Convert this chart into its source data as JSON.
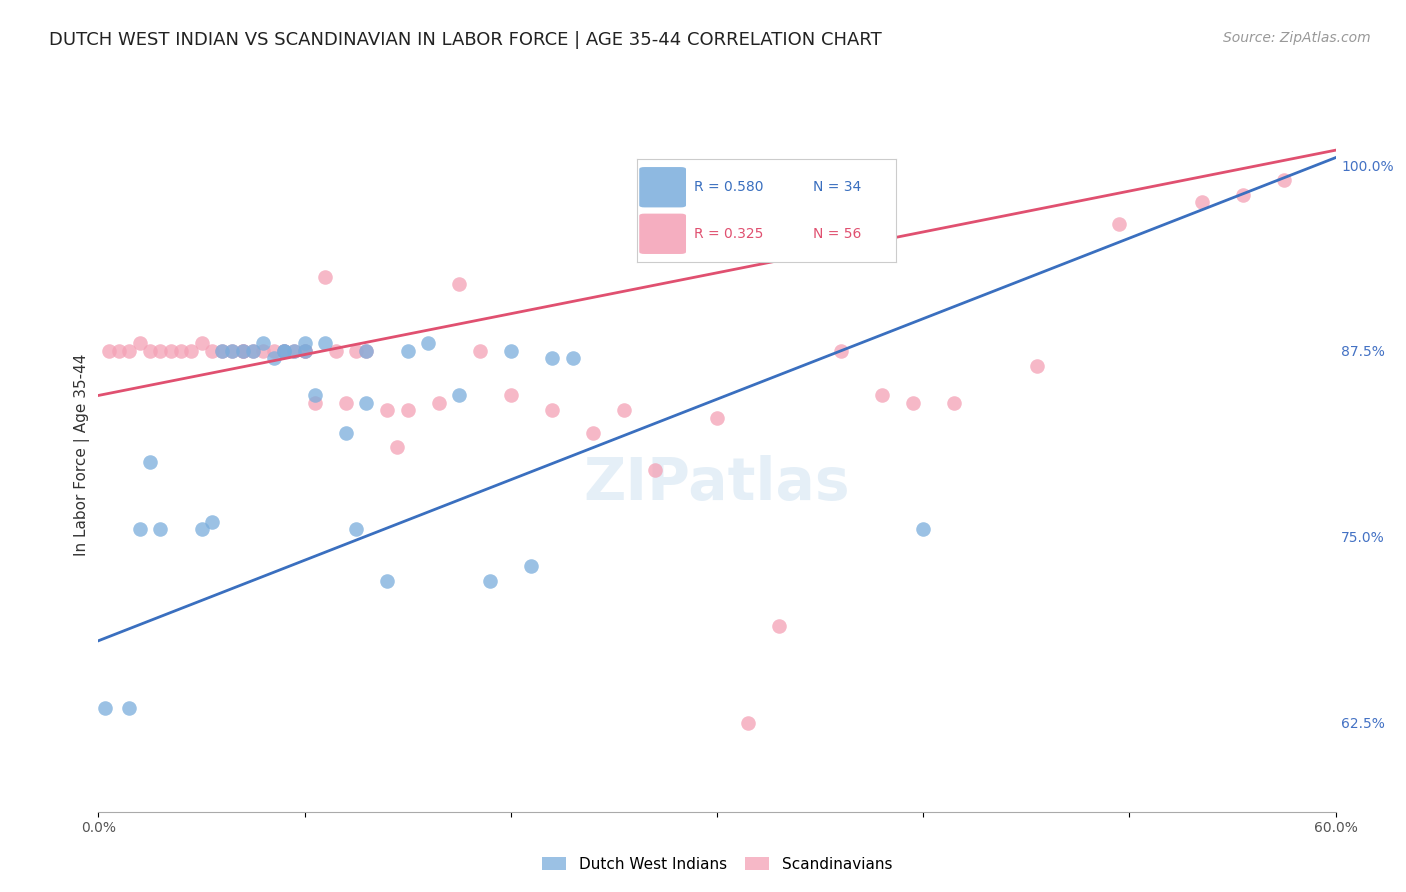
{
  "title": "DUTCH WEST INDIAN VS SCANDINAVIAN IN LABOR FORCE | AGE 35-44 CORRELATION CHART",
  "source": "Source: ZipAtlas.com",
  "ylabel": "In Labor Force | Age 35-44",
  "xmin": 0.0,
  "xmax": 0.6,
  "ymin": 0.565,
  "ymax": 1.045,
  "x_ticks": [
    0.0,
    0.1,
    0.2,
    0.3,
    0.4,
    0.5,
    0.6
  ],
  "x_tick_labels": [
    "0.0%",
    "",
    "",
    "",
    "",
    "",
    "60.0%"
  ],
  "y_ticks_right": [
    0.625,
    0.75,
    0.875,
    1.0
  ],
  "y_tick_labels_right": [
    "62.5%",
    "75.0%",
    "87.5%",
    "100.0%"
  ],
  "blue_color": "#7aaddc",
  "pink_color": "#f4a0b5",
  "blue_line_color": "#3a6fbf",
  "pink_line_color": "#e05070",
  "watermark": "ZIPatlas",
  "blue_scatter_x": [
    0.003,
    0.015,
    0.02,
    0.025,
    0.03,
    0.05,
    0.055,
    0.06,
    0.065,
    0.07,
    0.075,
    0.08,
    0.085,
    0.09,
    0.09,
    0.095,
    0.1,
    0.1,
    0.105,
    0.11,
    0.12,
    0.125,
    0.13,
    0.13,
    0.14,
    0.15,
    0.16,
    0.175,
    0.19,
    0.2,
    0.21,
    0.22,
    0.23,
    0.4
  ],
  "blue_scatter_y": [
    0.635,
    0.635,
    0.755,
    0.8,
    0.755,
    0.755,
    0.76,
    0.875,
    0.875,
    0.875,
    0.875,
    0.88,
    0.87,
    0.875,
    0.875,
    0.875,
    0.875,
    0.88,
    0.845,
    0.88,
    0.82,
    0.755,
    0.84,
    0.875,
    0.72,
    0.875,
    0.88,
    0.845,
    0.72,
    0.875,
    0.73,
    0.87,
    0.87,
    0.755
  ],
  "pink_scatter_x": [
    0.005,
    0.01,
    0.015,
    0.02,
    0.025,
    0.03,
    0.035,
    0.04,
    0.045,
    0.05,
    0.055,
    0.06,
    0.065,
    0.07,
    0.07,
    0.075,
    0.08,
    0.085,
    0.09,
    0.09,
    0.095,
    0.1,
    0.1,
    0.105,
    0.11,
    0.115,
    0.12,
    0.125,
    0.13,
    0.14,
    0.145,
    0.15,
    0.165,
    0.175,
    0.185,
    0.2,
    0.22,
    0.24,
    0.255,
    0.27,
    0.3,
    0.315,
    0.33,
    0.36,
    0.38,
    0.395,
    0.415,
    0.455,
    0.495,
    0.535,
    0.555,
    0.575
  ],
  "pink_scatter_y": [
    0.875,
    0.875,
    0.875,
    0.88,
    0.875,
    0.875,
    0.875,
    0.875,
    0.875,
    0.88,
    0.875,
    0.875,
    0.875,
    0.875,
    0.875,
    0.875,
    0.875,
    0.875,
    0.875,
    0.875,
    0.875,
    0.875,
    0.875,
    0.84,
    0.925,
    0.875,
    0.84,
    0.875,
    0.875,
    0.835,
    0.81,
    0.835,
    0.84,
    0.92,
    0.875,
    0.845,
    0.835,
    0.82,
    0.835,
    0.795,
    0.83,
    0.625,
    0.69,
    0.875,
    0.845,
    0.84,
    0.84,
    0.865,
    0.96,
    0.975,
    0.98,
    0.99
  ],
  "blue_line_x0": 0.0,
  "blue_line_x1": 0.6,
  "blue_line_y0": 0.68,
  "blue_line_y1": 1.005,
  "pink_line_x0": 0.0,
  "pink_line_x1": 0.6,
  "pink_line_y0": 0.845,
  "pink_line_y1": 1.01,
  "grid_color": "#d0d0d0",
  "background_color": "#ffffff",
  "title_fontsize": 13,
  "source_fontsize": 10,
  "axis_label_fontsize": 11,
  "tick_fontsize": 10,
  "right_tick_color": "#4472c4",
  "watermark_fontsize": 42,
  "watermark_color": "#cce0f0",
  "watermark_alpha": 0.5
}
